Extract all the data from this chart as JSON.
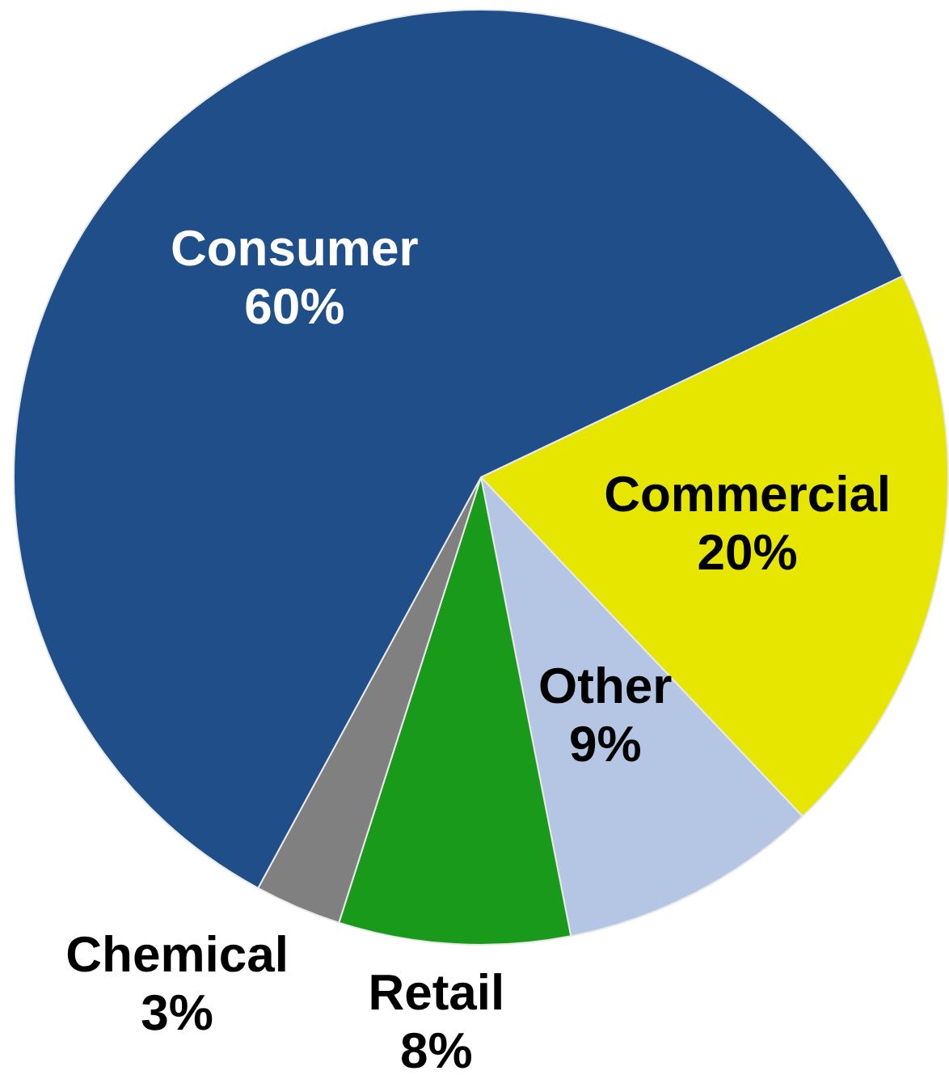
{
  "chart_data": {
    "type": "pie",
    "categories": [
      "Commercial",
      "Other",
      "Retail",
      "Chemical",
      "Consumer"
    ],
    "values": [
      20,
      9,
      8,
      3,
      60
    ],
    "value_labels": [
      "20%",
      "9%",
      "8%",
      "3%",
      "60%"
    ],
    "colors": [
      "#e6e600",
      "#b4c6e4",
      "#1a9a1a",
      "#808080",
      "#1f4e89"
    ],
    "legend": false
  }
}
